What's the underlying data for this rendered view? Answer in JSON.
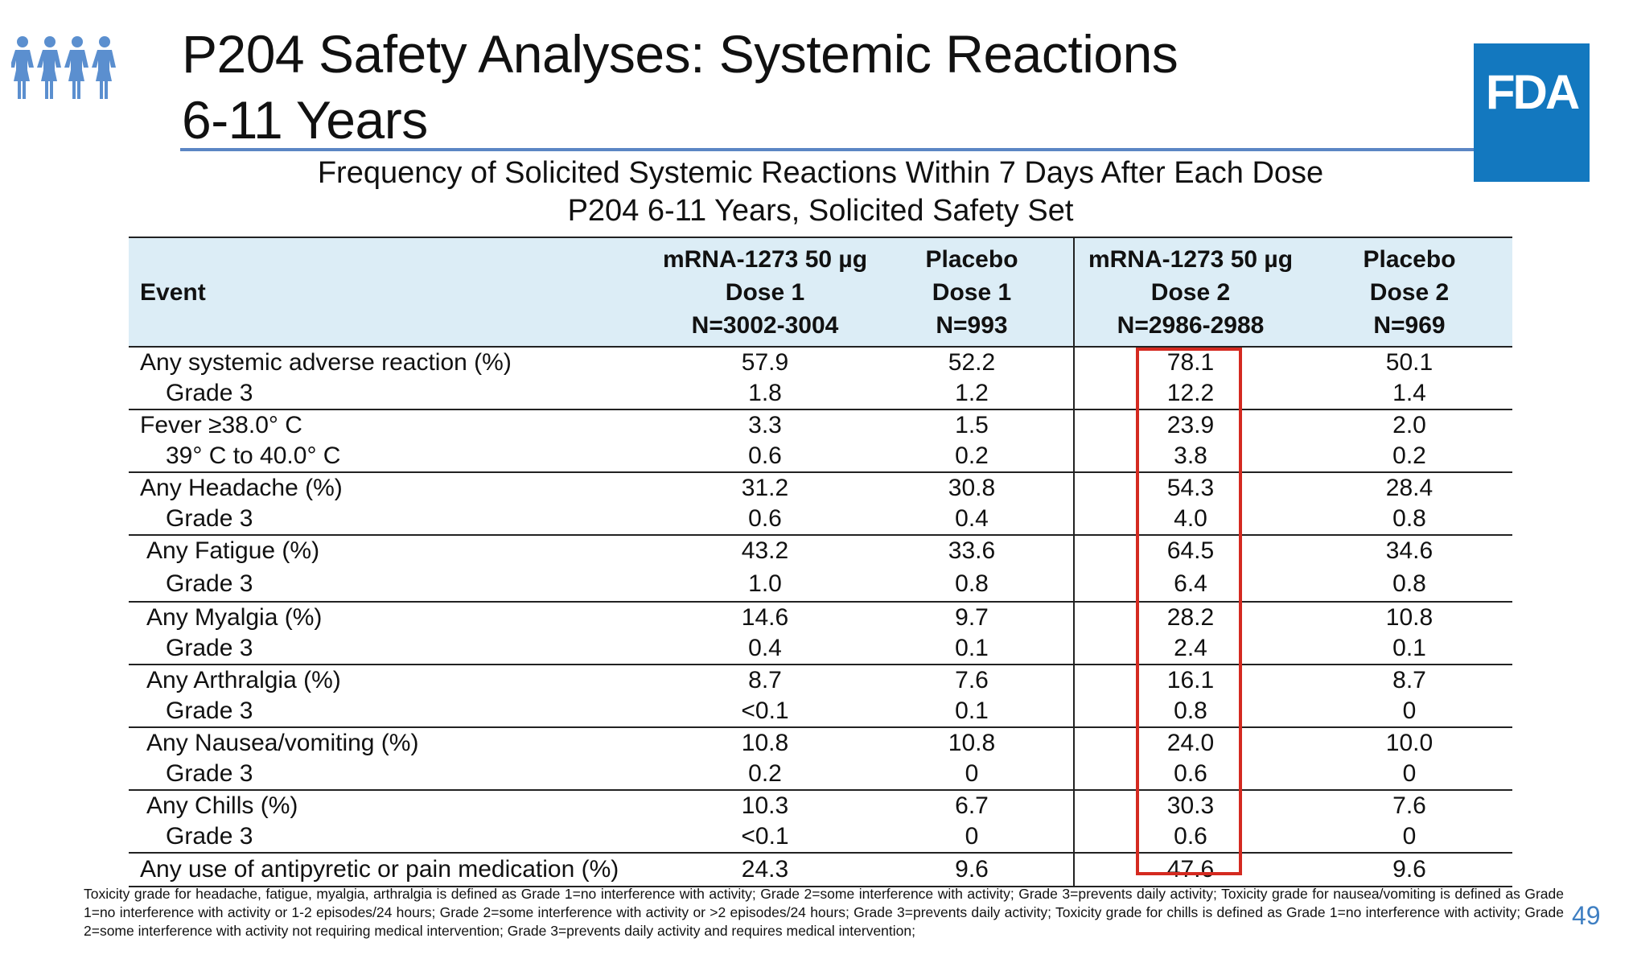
{
  "title_line1": "P204 Safety Analyses: Systemic Reactions",
  "title_line2": "6-11 Years",
  "logo_text": "FDA",
  "table_title_line1": "Frequency of Solicited Systemic Reactions Within 7 Days After Each Dose",
  "table_title_line2": "P204 6-11 Years, Solicited Safety Set",
  "headers": {
    "event": "Event",
    "col1": [
      "mRNA-1273 50 µg",
      "Dose 1",
      "N=3002-3004"
    ],
    "col2": [
      "Placebo",
      "Dose 1",
      "N=993"
    ],
    "col3": [
      "mRNA-1273 50 µg",
      "Dose 2",
      "N=2986-2988"
    ],
    "col4": [
      "Placebo",
      "Dose 2",
      "N=969"
    ]
  },
  "rows": [
    {
      "label": "Any systemic adverse reaction (%)",
      "v": [
        "57.9",
        "52.2",
        "78.1",
        "50.1"
      ]
    },
    {
      "label": "Grade 3",
      "v": [
        "1.8",
        "1.2",
        "12.2",
        "1.4"
      ]
    },
    {
      "label": "Fever ≥38.0°  C",
      "v": [
        "3.3",
        "1.5",
        "23.9",
        "2.0"
      ]
    },
    {
      "label": "39°  C to 40.0°  C",
      "v": [
        "0.6",
        "0.2",
        "3.8",
        "0.2"
      ]
    },
    {
      "label": "Any Headache (%)",
      "v": [
        "31.2",
        "30.8",
        "54.3",
        "28.4"
      ]
    },
    {
      "label": "Grade 3",
      "v": [
        "0.6",
        "0.4",
        "4.0",
        "0.8"
      ]
    },
    {
      "label": "Any Fatigue (%)",
      "v": [
        "43.2",
        "33.6",
        "64.5",
        "34.6"
      ]
    },
    {
      "label": "Grade 3",
      "v": [
        "1.0",
        "0.8",
        "6.4",
        "0.8"
      ]
    },
    {
      "label": "Any Myalgia (%)",
      "v": [
        "14.6",
        "9.7",
        "28.2",
        "10.8"
      ]
    },
    {
      "label": "Grade 3",
      "v": [
        "0.4",
        "0.1",
        "2.4",
        "0.1"
      ]
    },
    {
      "label": "Any Arthralgia (%)",
      "v": [
        "8.7",
        "7.6",
        "16.1",
        "8.7"
      ]
    },
    {
      "label": "Grade 3",
      "v": [
        "<0.1",
        "0.1",
        "0.8",
        "0"
      ]
    },
    {
      "label": "Any Nausea/vomiting (%)",
      "v": [
        "10.8",
        "10.8",
        "24.0",
        "10.0"
      ]
    },
    {
      "label": "Grade 3",
      "v": [
        "0.2",
        "0",
        "0.6",
        "0"
      ]
    },
    {
      "label": "Any Chills (%)",
      "v": [
        "10.3",
        "6.7",
        "30.3",
        "7.6"
      ]
    },
    {
      "label": "Grade 3",
      "v": [
        "<0.1",
        "0",
        "0.6",
        "0"
      ]
    },
    {
      "label": "Any use of antipyretic or pain medication (%)",
      "v": [
        "24.3",
        "9.6",
        "47.6",
        "9.6"
      ]
    }
  ],
  "footnote": "Toxicity grade for headache, fatigue, myalgia, arthralgia is defined as Grade 1=no interference with activity; Grade 2=some interference with activity; Grade 3=prevents daily activity; Toxicity grade for nausea/vomiting is defined as Grade 1=no interference with activity or 1-2 episodes/24 hours; Grade 2=some interference with activity or >2 episodes/24 hours; Grade 3=prevents daily activity; Toxicity grade for chills is defined as Grade 1=no interference with activity; Grade 2=some interference with activity not requiring medical intervention; Grade 3=prevents daily activity and requires medical intervention;",
  "page_number": "49",
  "colors": {
    "accent_rule": "#5b86c4",
    "fda_blue": "#1378bf",
    "header_bg": "#dcedf6",
    "highlight": "#d42a20",
    "people_icon": "#5b8fcf"
  }
}
